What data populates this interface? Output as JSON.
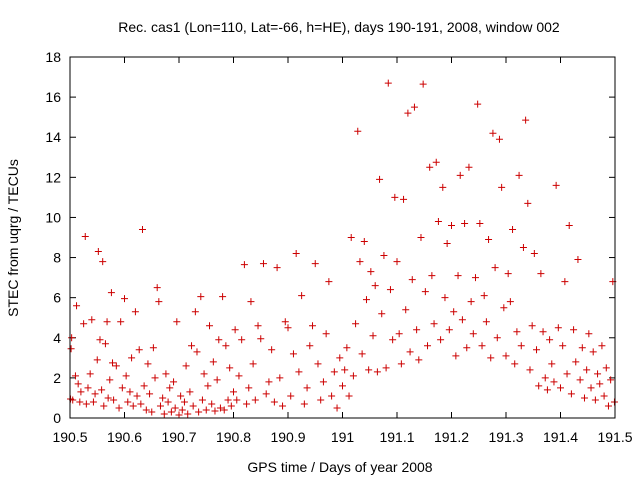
{
  "chart_data": {
    "type": "scatter",
    "title": "Rec. cas1 (Lon=110, Lat=-66, h=HE), days 190-191, 2008, window 002",
    "xlabel": "GPS time / Days of year 2008",
    "ylabel": "STEC from uqrg / TECUs",
    "xlim": [
      190.5,
      191.5
    ],
    "ylim": [
      0,
      18
    ],
    "x_ticks": [
      "190.5",
      "190.6",
      "190.7",
      "190.8",
      "190.9",
      "191",
      "191.1",
      "191.2",
      "191.3",
      "191.4",
      "191.5"
    ],
    "y_ticks": [
      "0",
      "2",
      "4",
      "6",
      "8",
      "10",
      "12",
      "14",
      "16",
      "18"
    ],
    "marker": "+",
    "color": "#cc0000",
    "grid": false,
    "points": [
      [
        190.501,
        0.95
      ],
      [
        190.502,
        3.45
      ],
      [
        190.503,
        4.0
      ],
      [
        190.505,
        0.9
      ],
      [
        190.51,
        2.1
      ],
      [
        190.512,
        5.6
      ],
      [
        190.515,
        1.7
      ],
      [
        190.518,
        0.8
      ],
      [
        190.52,
        1.3
      ],
      [
        190.525,
        4.7
      ],
      [
        190.528,
        9.05
      ],
      [
        190.53,
        0.7
      ],
      [
        190.533,
        1.5
      ],
      [
        190.537,
        2.2
      ],
      [
        190.54,
        4.9
      ],
      [
        190.543,
        0.8
      ],
      [
        190.546,
        1.2
      ],
      [
        190.55,
        2.9
      ],
      [
        190.552,
        8.3
      ],
      [
        190.555,
        3.9
      ],
      [
        190.558,
        1.4
      ],
      [
        190.56,
        7.8
      ],
      [
        190.562,
        0.6
      ],
      [
        190.565,
        3.7
      ],
      [
        190.568,
        4.8
      ],
      [
        190.57,
        1.0
      ],
      [
        190.573,
        1.9
      ],
      [
        190.576,
        6.25
      ],
      [
        190.578,
        2.75
      ],
      [
        190.58,
        0.9
      ],
      [
        190.585,
        2.6
      ],
      [
        190.59,
        0.5
      ],
      [
        190.593,
        4.8
      ],
      [
        190.596,
        1.5
      ],
      [
        190.6,
        5.95
      ],
      [
        190.603,
        2.1
      ],
      [
        190.606,
        0.8
      ],
      [
        190.61,
        1.3
      ],
      [
        190.613,
        3.0
      ],
      [
        190.616,
        0.6
      ],
      [
        190.62,
        5.3
      ],
      [
        190.623,
        1.1
      ],
      [
        190.627,
        3.4
      ],
      [
        190.63,
        0.7
      ],
      [
        190.633,
        9.4
      ],
      [
        190.636,
        1.6
      ],
      [
        190.64,
        0.4
      ],
      [
        190.643,
        2.7
      ],
      [
        190.646,
        1.2
      ],
      [
        190.65,
        0.3
      ],
      [
        190.653,
        3.5
      ],
      [
        190.656,
        2.0
      ],
      [
        190.66,
        6.5
      ],
      [
        190.663,
        5.8
      ],
      [
        190.666,
        0.6
      ],
      [
        190.67,
        1.0
      ],
      [
        190.673,
        0.2
      ],
      [
        190.676,
        2.2
      ],
      [
        190.68,
        0.8
      ],
      [
        190.683,
        1.5
      ],
      [
        190.686,
        0.3
      ],
      [
        190.69,
        1.8
      ],
      [
        190.693,
        0.5
      ],
      [
        190.696,
        4.8
      ],
      [
        190.7,
        0.15
      ],
      [
        190.703,
        1.1
      ],
      [
        190.706,
        0.4
      ],
      [
        190.71,
        0.8
      ],
      [
        190.713,
        2.6
      ],
      [
        190.716,
        0.2
      ],
      [
        190.72,
        1.3
      ],
      [
        190.723,
        3.6
      ],
      [
        190.726,
        0.6
      ],
      [
        190.73,
        5.3
      ],
      [
        190.733,
        3.3
      ],
      [
        190.736,
        0.3
      ],
      [
        190.74,
        6.05
      ],
      [
        190.743,
        0.9
      ],
      [
        190.746,
        2.2
      ],
      [
        190.75,
        0.4
      ],
      [
        190.753,
        1.6
      ],
      [
        190.756,
        4.6
      ],
      [
        190.76,
        0.7
      ],
      [
        190.763,
        2.8
      ],
      [
        190.766,
        0.35
      ],
      [
        190.77,
        1.9
      ],
      [
        190.773,
        3.9
      ],
      [
        190.776,
        0.5
      ],
      [
        190.78,
        6.05
      ],
      [
        190.783,
        0.4
      ],
      [
        190.786,
        3.6
      ],
      [
        190.79,
        0.9
      ],
      [
        190.793,
        2.5
      ],
      [
        190.796,
        0.6
      ],
      [
        190.8,
        1.3
      ],
      [
        190.803,
        4.4
      ],
      [
        190.806,
        0.9
      ],
      [
        190.81,
        2.1
      ],
      [
        190.815,
        3.9
      ],
      [
        190.82,
        7.65
      ],
      [
        190.824,
        0.7
      ],
      [
        190.828,
        1.5
      ],
      [
        190.832,
        5.8
      ],
      [
        190.836,
        2.7
      ],
      [
        190.84,
        0.9
      ],
      [
        190.845,
        4.6
      ],
      [
        190.85,
        3.95
      ],
      [
        190.855,
        7.7
      ],
      [
        190.86,
        1.2
      ],
      [
        190.865,
        1.8
      ],
      [
        190.87,
        3.4
      ],
      [
        190.875,
        0.8
      ],
      [
        190.88,
        7.5
      ],
      [
        190.885,
        2.0
      ],
      [
        190.89,
        0.6
      ],
      [
        190.895,
        4.8
      ],
      [
        190.9,
        4.5
      ],
      [
        190.905,
        1.1
      ],
      [
        190.91,
        3.2
      ],
      [
        190.915,
        8.2
      ],
      [
        190.92,
        2.3
      ],
      [
        190.925,
        6.1
      ],
      [
        190.93,
        0.7
      ],
      [
        190.935,
        1.5
      ],
      [
        190.94,
        3.6
      ],
      [
        190.945,
        4.6
      ],
      [
        190.95,
        7.7
      ],
      [
        190.955,
        2.7
      ],
      [
        190.96,
        0.9
      ],
      [
        190.965,
        1.8
      ],
      [
        190.97,
        4.2
      ],
      [
        190.975,
        6.8
      ],
      [
        190.98,
        1.1
      ],
      [
        190.985,
        2.3
      ],
      [
        190.99,
        0.5
      ],
      [
        190.995,
        3.0
      ],
      [
        191.0,
        1.6
      ],
      [
        191.004,
        2.4
      ],
      [
        191.008,
        3.5
      ],
      [
        191.012,
        1.1
      ],
      [
        191.016,
        9.0
      ],
      [
        191.02,
        2.1
      ],
      [
        191.024,
        4.7
      ],
      [
        191.028,
        14.3
      ],
      [
        191.032,
        7.8
      ],
      [
        191.036,
        3.2
      ],
      [
        191.04,
        8.8
      ],
      [
        191.044,
        5.9
      ],
      [
        191.048,
        2.4
      ],
      [
        191.052,
        7.3
      ],
      [
        191.056,
        4.1
      ],
      [
        191.06,
        6.6
      ],
      [
        191.064,
        2.3
      ],
      [
        191.068,
        11.9
      ],
      [
        191.072,
        5.2
      ],
      [
        191.076,
        8.1
      ],
      [
        191.08,
        2.5
      ],
      [
        191.084,
        16.7
      ],
      [
        191.088,
        6.4
      ],
      [
        191.092,
        3.9
      ],
      [
        191.096,
        11.0
      ],
      [
        191.1,
        7.8
      ],
      [
        191.104,
        4.2
      ],
      [
        191.108,
        2.7
      ],
      [
        191.112,
        10.9
      ],
      [
        191.116,
        5.4
      ],
      [
        191.12,
        15.2
      ],
      [
        191.124,
        3.3
      ],
      [
        191.128,
        6.9
      ],
      [
        191.132,
        15.5
      ],
      [
        191.136,
        4.4
      ],
      [
        191.14,
        2.9
      ],
      [
        191.144,
        9.0
      ],
      [
        191.148,
        16.65
      ],
      [
        191.152,
        6.3
      ],
      [
        191.156,
        3.6
      ],
      [
        191.16,
        12.5
      ],
      [
        191.164,
        7.1
      ],
      [
        191.168,
        4.7
      ],
      [
        191.172,
        12.75
      ],
      [
        191.176,
        9.8
      ],
      [
        191.18,
        3.9
      ],
      [
        191.184,
        11.5
      ],
      [
        191.188,
        6.0
      ],
      [
        191.192,
        8.7
      ],
      [
        191.196,
        4.4
      ],
      [
        191.2,
        9.6
      ],
      [
        191.204,
        5.3
      ],
      [
        191.208,
        3.1
      ],
      [
        191.212,
        7.1
      ],
      [
        191.216,
        12.1
      ],
      [
        191.22,
        4.9
      ],
      [
        191.224,
        9.7
      ],
      [
        191.228,
        3.5
      ],
      [
        191.232,
        12.5
      ],
      [
        191.236,
        5.8
      ],
      [
        191.24,
        4.2
      ],
      [
        191.244,
        7.0
      ],
      [
        191.248,
        15.65
      ],
      [
        191.252,
        9.7
      ],
      [
        191.256,
        3.6
      ],
      [
        191.26,
        6.1
      ],
      [
        191.264,
        4.8
      ],
      [
        191.268,
        8.9
      ],
      [
        191.272,
        3.0
      ],
      [
        191.276,
        14.2
      ],
      [
        191.28,
        7.5
      ],
      [
        191.284,
        4.0
      ],
      [
        191.288,
        13.9
      ],
      [
        191.292,
        11.5
      ],
      [
        191.296,
        5.5
      ],
      [
        191.3,
        3.1
      ],
      [
        191.304,
        7.2
      ],
      [
        191.308,
        5.8
      ],
      [
        191.312,
        9.4
      ],
      [
        191.316,
        2.7
      ],
      [
        191.32,
        4.3
      ],
      [
        191.324,
        12.1
      ],
      [
        191.328,
        3.6
      ],
      [
        191.332,
        8.5
      ],
      [
        191.336,
        14.85
      ],
      [
        191.34,
        10.7
      ],
      [
        191.344,
        2.4
      ],
      [
        191.348,
        4.6
      ],
      [
        191.352,
        8.2
      ],
      [
        191.356,
        3.4
      ],
      [
        191.36,
        1.6
      ],
      [
        191.364,
        7.2
      ],
      [
        191.368,
        4.3
      ],
      [
        191.372,
        2.0
      ],
      [
        191.376,
        1.4
      ],
      [
        191.38,
        3.9
      ],
      [
        191.384,
        2.7
      ],
      [
        191.388,
        1.8
      ],
      [
        191.392,
        11.6
      ],
      [
        191.396,
        4.5
      ],
      [
        191.4,
        1.5
      ],
      [
        191.404,
        3.6
      ],
      [
        191.408,
        6.8
      ],
      [
        191.412,
        2.2
      ],
      [
        191.416,
        9.6
      ],
      [
        191.42,
        1.2
      ],
      [
        191.424,
        4.4
      ],
      [
        191.428,
        2.8
      ],
      [
        191.432,
        7.9
      ],
      [
        191.436,
        1.9
      ],
      [
        191.44,
        3.5
      ],
      [
        191.444,
        1.0
      ],
      [
        191.448,
        2.4
      ],
      [
        191.452,
        4.2
      ],
      [
        191.456,
        1.5
      ],
      [
        191.46,
        3.3
      ],
      [
        191.464,
        0.9
      ],
      [
        191.468,
        2.2
      ],
      [
        191.472,
        1.7
      ],
      [
        191.476,
        3.6
      ],
      [
        191.48,
        1.1
      ],
      [
        191.484,
        2.5
      ],
      [
        191.488,
        0.6
      ],
      [
        191.492,
        1.9
      ],
      [
        191.496,
        6.8
      ],
      [
        191.499,
        0.8
      ]
    ]
  }
}
